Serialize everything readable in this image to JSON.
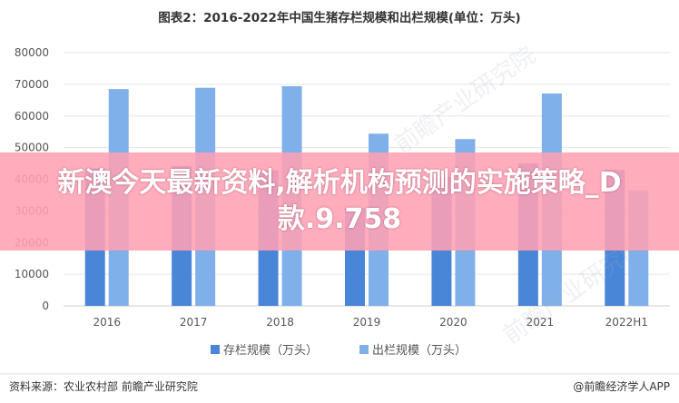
{
  "chart_data": {
    "type": "bar",
    "title": "图表2：2016-2022年中国生猪存栏规模和出栏规模(单位：万头)",
    "categories": [
      "2016",
      "2017",
      "2018",
      "2019",
      "2020",
      "2021",
      "2022H1"
    ],
    "series": [
      {
        "name": "存栏规模（万头）",
        "color": "#4a86d8",
        "values": [
          43500,
          44200,
          42800,
          31000,
          40700,
          45000,
          43000
        ]
      },
      {
        "name": "出栏规模（万头）",
        "color": "#7fb0ea",
        "values": [
          68500,
          68900,
          69400,
          54400,
          52700,
          67100,
          36500
        ]
      }
    ],
    "ylim": [
      0,
      80000
    ],
    "yticks": [
      0,
      10000,
      20000,
      30000,
      40000,
      50000,
      60000,
      70000,
      80000
    ],
    "grid": true,
    "legend_position": "bottom"
  },
  "footer": {
    "source": "资料来源：农业农村部 前瞻产业研究院",
    "brand": "@前瞻经济学人APP"
  },
  "watermark": "前瞻产业研究院",
  "banner": {
    "headline": "新澳今天最新资料,解析机构预测的实施策略_D款.9.758"
  }
}
